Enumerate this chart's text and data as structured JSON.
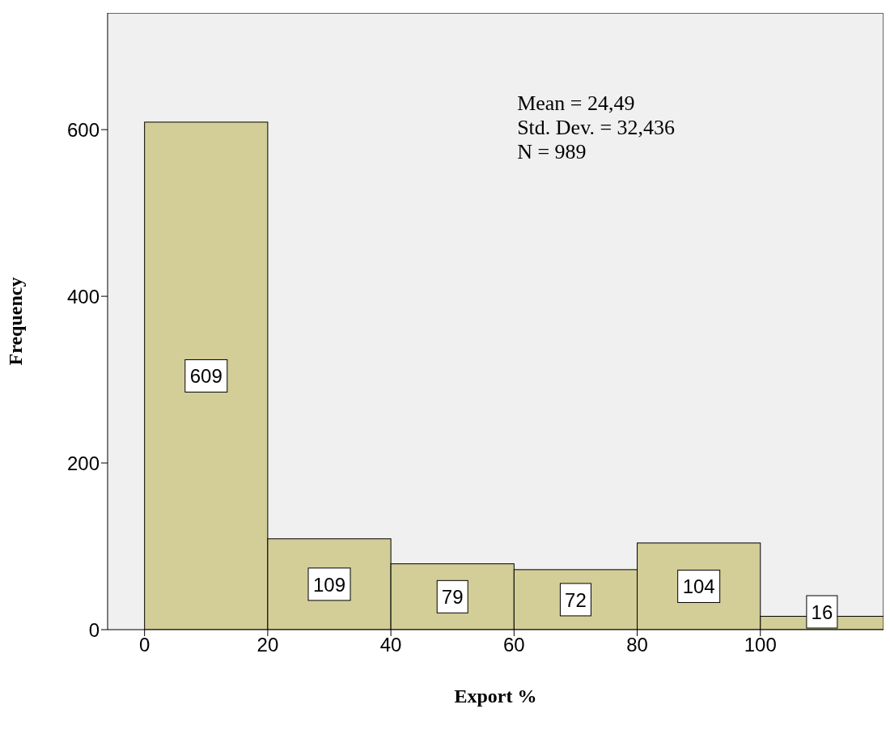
{
  "chart_data": {
    "type": "histogram",
    "xlabel": "Export %",
    "ylabel": "Frequency",
    "bins": [
      0,
      20,
      40,
      60,
      80,
      100,
      120
    ],
    "values": [
      609,
      109,
      79,
      72,
      104,
      16
    ],
    "color": "#d3ce97",
    "xlim": [
      -6,
      120
    ],
    "xticks": [
      0,
      20,
      40,
      60,
      80,
      100
    ],
    "ylim": [
      0,
      740
    ],
    "yticks": [
      0,
      200,
      400,
      600
    ],
    "data_labels": true,
    "annotations": [
      "Mean = 24,49",
      "Std. Dev. = 32,436",
      "N = 989"
    ]
  }
}
